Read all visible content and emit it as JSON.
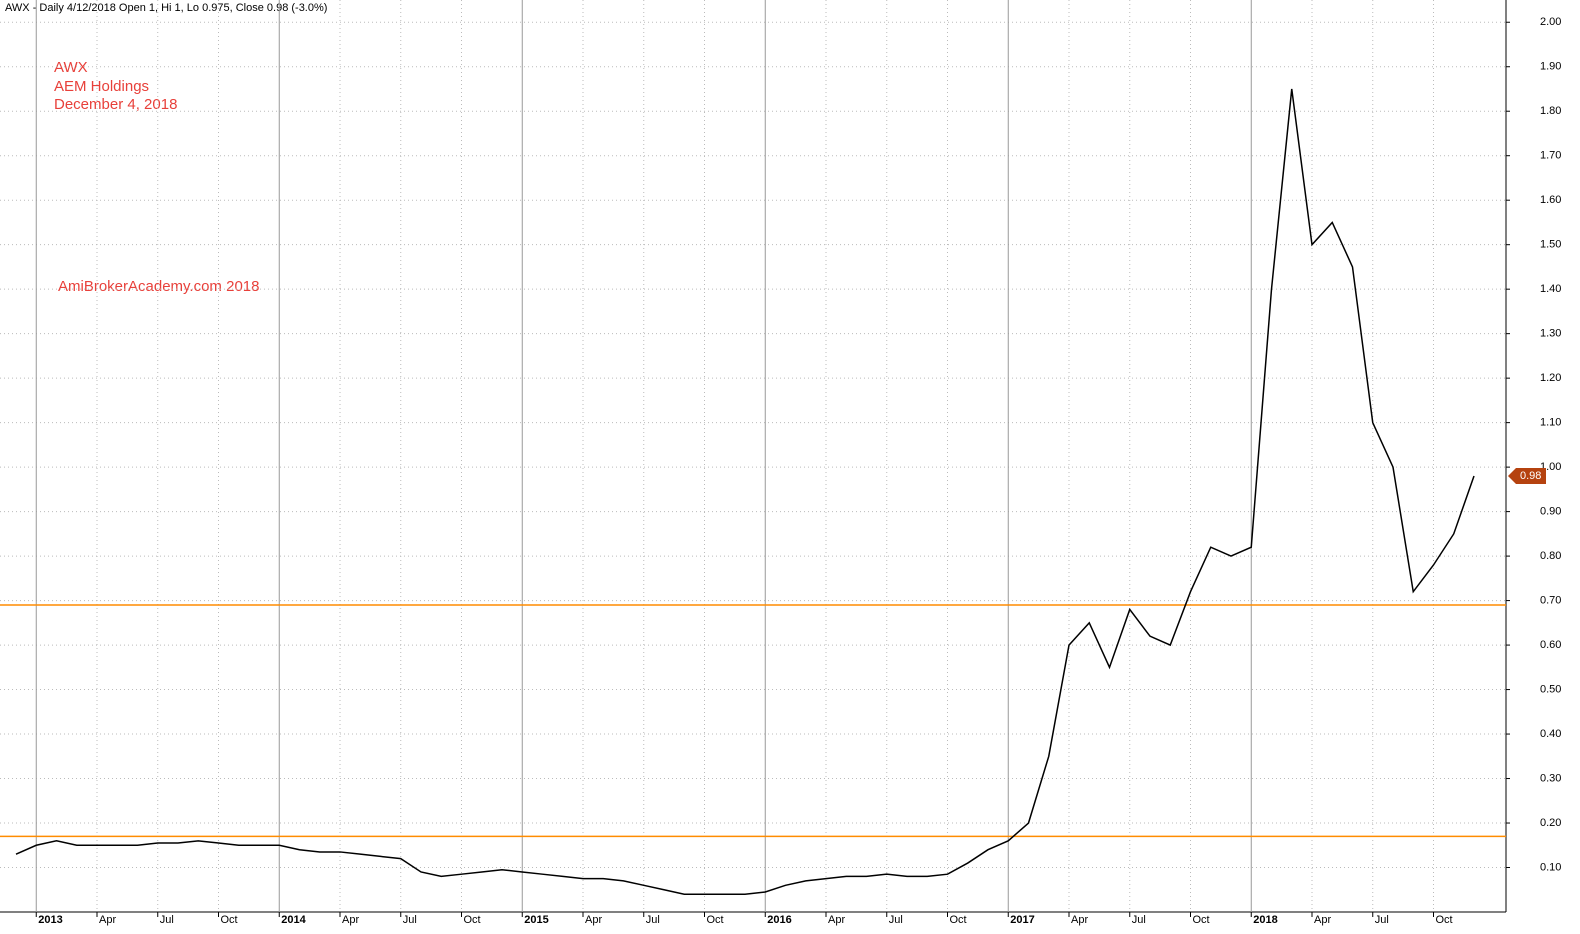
{
  "chart_data": {
    "type": "line",
    "header": "AWX - Daily 4/12/2018 Open 1, Hi 1, Lo 0.975, Close 0.98 (-3.0%)",
    "annotations": [
      "AWX",
      "AEM Holdings",
      "December 4, 2018"
    ],
    "watermark": "AmiBrokerAcademy.com 2018",
    "categories": [
      null,
      "2013",
      null,
      null,
      "Apr",
      null,
      null,
      "Jul",
      null,
      null,
      "Oct",
      null,
      null,
      "2014",
      null,
      null,
      "Apr",
      null,
      null,
      "Jul",
      null,
      null,
      "Oct",
      null,
      null,
      "2015",
      null,
      null,
      "Apr",
      null,
      null,
      "Jul",
      null,
      null,
      "Oct",
      null,
      null,
      "2016",
      null,
      null,
      "Apr",
      null,
      null,
      "Jul",
      null,
      null,
      "Oct",
      null,
      null,
      "2017",
      null,
      null,
      "Apr",
      null,
      null,
      "Jul",
      null,
      null,
      "Oct",
      null,
      null,
      "2018",
      null,
      null,
      "Apr",
      null,
      null,
      "Jul",
      null,
      null,
      "Oct",
      null,
      null,
      null,
      null
    ],
    "series": [
      {
        "name": "AWX",
        "color": "#000000",
        "values": [
          0.13,
          0.15,
          0.16,
          0.15,
          0.15,
          0.15,
          0.15,
          0.155,
          0.155,
          0.16,
          0.155,
          0.15,
          0.15,
          0.15,
          0.14,
          0.135,
          0.135,
          0.13,
          0.125,
          0.12,
          0.09,
          0.08,
          0.085,
          0.09,
          0.095,
          0.09,
          0.085,
          0.08,
          0.075,
          0.075,
          0.07,
          0.06,
          0.05,
          0.04,
          0.04,
          0.04,
          0.04,
          0.045,
          0.06,
          0.07,
          0.075,
          0.08,
          0.08,
          0.085,
          0.08,
          0.08,
          0.085,
          0.11,
          0.14,
          0.16,
          0.2,
          0.35,
          0.6,
          0.65,
          0.55,
          0.68,
          0.62,
          0.6,
          0.72,
          0.82,
          0.8,
          0.82,
          1.4,
          1.85,
          1.5,
          1.55,
          1.45,
          1.1,
          1.0,
          0.72,
          0.78,
          0.85,
          0.98,
          null,
          null
        ]
      }
    ],
    "last_value": 0.98,
    "hlines": [
      {
        "value": 0.17,
        "color": "#ff8c00"
      },
      {
        "value": 0.69,
        "color": "#ff8c00"
      }
    ],
    "ylim": [
      0,
      2.05
    ],
    "yticks": [
      {
        "value": 0.1,
        "label": "0.10"
      },
      {
        "value": 0.2,
        "label": "0.20"
      },
      {
        "value": 0.3,
        "label": "0.30"
      },
      {
        "value": 0.4,
        "label": "0.40"
      },
      {
        "value": 0.5,
        "label": "0.50"
      },
      {
        "value": 0.6,
        "label": "0.60"
      },
      {
        "value": 0.7,
        "label": "0.70"
      },
      {
        "value": 0.8,
        "label": "0.80"
      },
      {
        "value": 0.9,
        "label": "0.90"
      },
      {
        "value": 1.0,
        "label": "1.00"
      },
      {
        "value": 1.1,
        "label": "1.10"
      },
      {
        "value": 1.2,
        "label": "1.20"
      },
      {
        "value": 1.3,
        "label": "1.30"
      },
      {
        "value": 1.4,
        "label": "1.40"
      },
      {
        "value": 1.5,
        "label": "1.50"
      },
      {
        "value": 1.6,
        "label": "1.60"
      },
      {
        "value": 1.7,
        "label": "1.70"
      },
      {
        "value": 1.8,
        "label": "1.80"
      },
      {
        "value": 1.9,
        "label": "1.90"
      },
      {
        "value": 2.0,
        "label": "2.00"
      }
    ],
    "grid": true
  }
}
